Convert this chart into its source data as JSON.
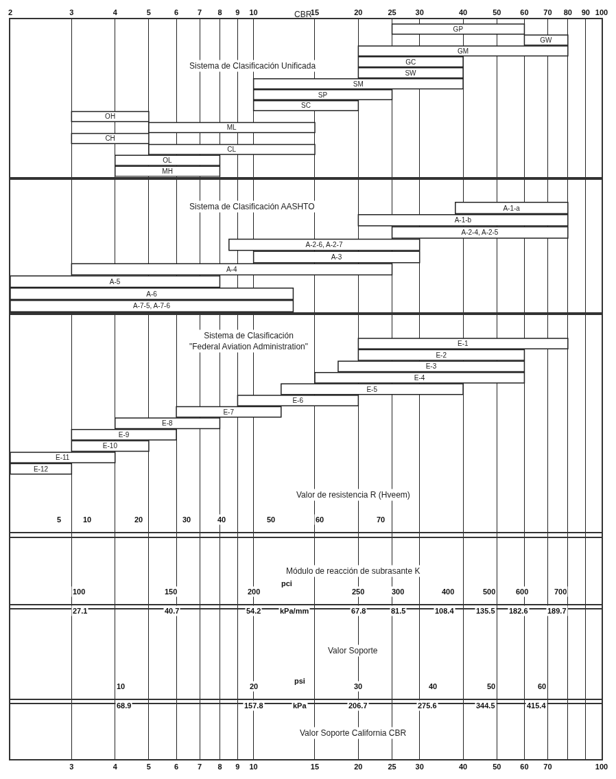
{
  "chart_data": [
    {
      "type": "bar",
      "orientation": "horizontal",
      "title": "Sistema de Clasificación Unificada",
      "xlabel": "CBR",
      "color": "#ffffff",
      "categories": [
        "GP",
        "GW",
        "GM",
        "GC",
        "SW",
        "SM",
        "SP",
        "SC",
        "OH",
        "ML",
        "CH",
        "CL",
        "OL",
        "MH"
      ],
      "base": [
        25,
        60,
        20,
        20,
        20,
        10,
        10,
        10,
        3,
        5,
        3,
        5,
        4,
        4
      ],
      "values": [
        35,
        20,
        60,
        20,
        20,
        30,
        15,
        10,
        2,
        10,
        2,
        10,
        4,
        4
      ],
      "log": "x",
      "xlim": [
        2,
        100
      ],
      "xticks": [
        2,
        3,
        4,
        5,
        6,
        7,
        8,
        9,
        10,
        15,
        20,
        25,
        30,
        40,
        50,
        60,
        70,
        80,
        90,
        100
      ],
      "grid": "x"
    },
    {
      "type": "bar",
      "orientation": "horizontal",
      "title": "Sistema de Clasificación AASHTO",
      "color": "#ffffff",
      "categories": [
        "A-1-a",
        "A-1-b",
        "A-2-4, A-2-5",
        "A-2-6, A-2-7",
        "A-3",
        "A-4",
        "A-5",
        "A-6",
        "A-7-5, A-7-6"
      ],
      "base": [
        38,
        20,
        25,
        8.5,
        10,
        3,
        2,
        2,
        2
      ],
      "values": [
        42,
        60,
        55,
        21.5,
        20,
        22,
        6,
        11,
        11
      ],
      "log": "x",
      "xlim": [
        2,
        100
      ],
      "grid": "x",
      "tick_labels": false
    },
    {
      "type": "bar",
      "orientation": "horizontal",
      "title": "Sistema de Clasificación\n\"Federal Aviation Administration\"",
      "xlabel": "Valor Soporte California CBR",
      "color": "#ffffff",
      "categories": [
        null,
        null,
        "E-1",
        "E-2",
        "E-3",
        "E-4",
        "E-5",
        "E-6",
        "E-7",
        "E-8",
        "E-9",
        "E-10",
        "E-11",
        "E-12",
        null,
        null,
        null,
        null,
        null,
        null,
        null,
        null,
        null,
        null,
        null,
        null,
        null,
        null,
        null,
        null,
        null,
        null,
        null,
        null,
        null,
        null,
        null,
        null,
        null
      ],
      "base": [
        null,
        null,
        20,
        20,
        17.5,
        15,
        12,
        9,
        6,
        4,
        3,
        3,
        2,
        2,
        null,
        null,
        null,
        null,
        null,
        null,
        null,
        null,
        null,
        null,
        null,
        null,
        null,
        null,
        null,
        null,
        null,
        null,
        null,
        null,
        null,
        null,
        null,
        null,
        null
      ],
      "values": [
        null,
        null,
        60,
        40,
        42.5,
        45,
        28,
        11,
        6,
        4,
        3,
        2,
        2,
        1,
        null,
        null,
        null,
        null,
        null,
        null,
        null,
        null,
        null,
        null,
        null,
        null,
        null,
        null,
        null,
        null,
        null,
        null,
        null,
        null,
        null,
        null,
        null,
        null,
        null
      ],
      "log": "x",
      "xlim": [
        2,
        100
      ],
      "xticks": [
        3,
        4,
        5,
        6,
        7,
        8,
        9,
        10,
        15,
        20,
        25,
        30,
        40,
        50,
        60,
        70,
        {
          "value": 80,
          "label": null
        },
        {
          "value": 90,
          "label": null
        },
        100
      ],
      "grid": "x"
    },
    {
      "type": "other",
      "title": "Valor de resistencia R (Hveem)",
      "annotations": [
        "5",
        "10",
        "20",
        "30",
        "40",
        "50",
        "60",
        "70"
      ]
    },
    {
      "type": "other",
      "title": "Módulo de reacción de subrasante K",
      "annotations": [
        "100",
        "150",
        "200",
        "250",
        "300",
        "400",
        "500",
        "600",
        "700",
        "pci",
        "27.1",
        "40.7",
        "54.2",
        "67.8",
        "81.5",
        "108.4",
        "135.5",
        "182.6",
        "189.7",
        "kPa/mm"
      ]
    },
    {
      "type": "other",
      "title": "Valor Soporte",
      "annotations": [
        "10",
        "20",
        "30",
        "40",
        "50",
        "60",
        "psi",
        "68.9",
        "157.8",
        "206.7",
        "275.6",
        "344.5",
        "415.4",
        "kPa"
      ]
    }
  ]
}
